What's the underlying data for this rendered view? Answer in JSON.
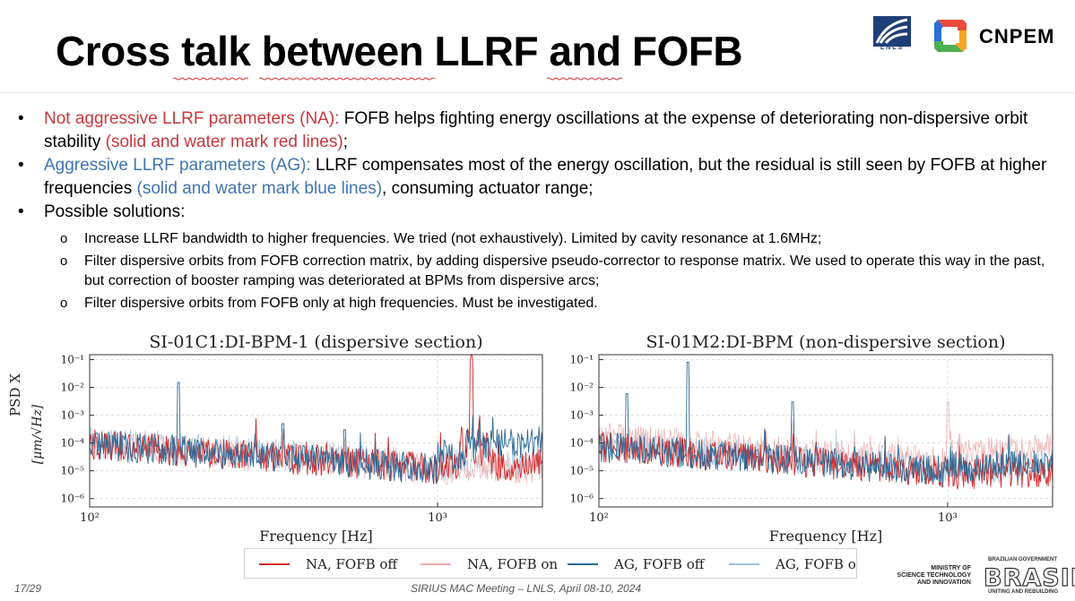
{
  "slide": {
    "title": "Cross talk between LLRF and FOFB",
    "page_number": "17/29",
    "footer": "SIRIUS MAC Meeting –  LNLS, April 08-10, 2024"
  },
  "logos": {
    "lnls_text": "LNLS",
    "cnpem_text": "CNPEM",
    "ministry": [
      "MINISTRY OF",
      "SCIENCE TECHNOLOGY",
      "AND INNOVATION"
    ],
    "brazil_top": "BRAZILIAN GOVERNMENT",
    "brazil_word": "BRASIL",
    "brazil_bottom": "UNITING AND REBUILDING"
  },
  "bullets": [
    {
      "lead": "Not aggressive LLRF parameters (NA):",
      "lead_color": "#c9373b",
      "text1": " FOFB helps fighting energy oscillations at the expense of deteriorating non-dispersive orbit stability ",
      "colored": "(solid and water mark red lines)",
      "text2": ";"
    },
    {
      "lead": "Aggressive LLRF parameters (AG):",
      "lead_color": "#3f74b3",
      "text1": " LLRF compensates most of the energy oscillation, but the residual is still seen by FOFB at higher frequencies ",
      "colored": "(solid and water mark blue lines)",
      "text2": ", consuming actuator range;"
    },
    {
      "lead": "Possible solutions:",
      "sub": [
        "Increase LLRF bandwidth to higher frequencies. We tried (not exhaustively). Limited by cavity resonance at 1.6MHz;",
        "Filter dispersive orbits from FOFB correction matrix, by adding dispersive pseudo-corrector to response matrix. We used to operate this way in the past, but correction of booster ramping was deteriorated at BPMs from dispersive arcs;",
        "Filter dispersive orbits from FOFB only at high frequencies. Must be investigated."
      ]
    }
  ],
  "chart_data": [
    {
      "type": "line",
      "title": "SI-01C1:DI-BPM-1 (dispersive section)",
      "xlabel": "Frequency [Hz]",
      "ylabel": "PSD X",
      "yunit": "[μm/√Hz]",
      "x_scale": "log",
      "y_scale": "log",
      "x_ticks": [
        "10²",
        "10³"
      ],
      "y_ticks": [
        "10⁻⁶",
        "10⁻⁵",
        "10⁻⁴",
        "10⁻³",
        "10⁻²",
        "10⁻¹"
      ],
      "xlim": [
        100,
        2000
      ],
      "ylim": [
        5e-07,
        0.15
      ],
      "grid": true,
      "peaks": [
        {
          "series": "AG, FOFB off",
          "x": 180,
          "y": 0.015
        },
        {
          "series": "AG, FOFB off",
          "x": 360,
          "y": 0.0005
        },
        {
          "series": "AG, FOFB off",
          "x": 540,
          "y": 0.0003
        },
        {
          "series": "NA, FOFB off",
          "x": 1250,
          "y": 0.03
        }
      ]
    },
    {
      "type": "line",
      "title": "SI-01M2:DI-BPM (non-dispersive section)",
      "xlabel": "Frequency [Hz]",
      "x_scale": "log",
      "y_scale": "log",
      "x_ticks": [
        "10²",
        "10³"
      ],
      "y_ticks": [
        "10⁻⁶",
        "10⁻⁵",
        "10⁻⁴",
        "10⁻³",
        "10⁻²",
        "10⁻¹"
      ],
      "xlim": [
        100,
        2000
      ],
      "ylim": [
        5e-07,
        0.15
      ],
      "grid": true,
      "peaks": [
        {
          "series": "AG, FOFB off",
          "x": 180,
          "y": 0.08
        },
        {
          "series": "AG, FOFB off",
          "x": 120,
          "y": 0.006
        },
        {
          "series": "AG, FOFB off",
          "x": 360,
          "y": 0.003
        },
        {
          "series": "NA, FOFB on",
          "x": 1000,
          "y": 0.003
        }
      ]
    }
  ],
  "legend": {
    "items": [
      {
        "label": "NA, FOFB off",
        "color": "#d62728"
      },
      {
        "label": "NA, FOFB on",
        "color": "#eda9aa"
      },
      {
        "label": "AG, FOFB off",
        "color": "#2c6b96"
      },
      {
        "label": "AG, FOFB on",
        "color": "#9cc1dc"
      }
    ]
  }
}
